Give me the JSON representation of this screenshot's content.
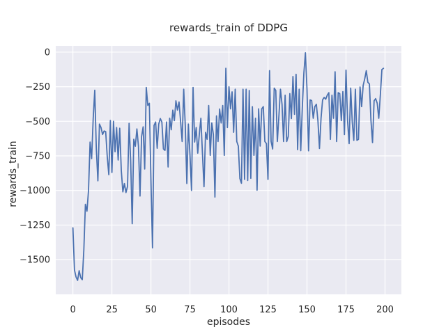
{
  "figure": {
    "kind": "matplotlib-seaborn-figure",
    "background": "#FFFFFF"
  },
  "chart_data": {
    "type": "line",
    "title": "rewards_train of DDPG",
    "xlabel": "episodes",
    "ylabel": "rewards_train",
    "legend": "none",
    "grid": true,
    "plot_bg": "#EAEAF2",
    "grid_color": "#FFFFFF",
    "text_color": "#262626",
    "line_color": "#4C72B0",
    "xlim": [
      -11,
      210.5
    ],
    "ylim": [
      -1751,
      45
    ],
    "xticks": [
      {
        "v": 0,
        "label": "0"
      },
      {
        "v": 25,
        "label": "25"
      },
      {
        "v": 50,
        "label": "50"
      },
      {
        "v": 75,
        "label": "75"
      },
      {
        "v": 100,
        "label": "100"
      },
      {
        "v": 125,
        "label": "125"
      },
      {
        "v": 150,
        "label": "150"
      },
      {
        "v": 175,
        "label": "175"
      },
      {
        "v": 200,
        "label": "200"
      }
    ],
    "yticks": [
      {
        "v": 0,
        "label": "0"
      },
      {
        "v": -250,
        "label": "−250"
      },
      {
        "v": -500,
        "label": "−500"
      },
      {
        "v": -750,
        "label": "−750"
      },
      {
        "v": -1000,
        "label": "−1000"
      },
      {
        "v": -1250,
        "label": "−1250"
      },
      {
        "v": -1500,
        "label": "−1500"
      }
    ],
    "series": [
      {
        "name": "rewards_train",
        "color": "#4C72B0",
        "x_start": 0,
        "x_step": 1,
        "values": [
          -1270,
          -1575,
          -1625,
          -1650,
          -1580,
          -1630,
          -1645,
          -1430,
          -1100,
          -1150,
          -1000,
          -650,
          -770,
          -480,
          -275,
          -700,
          -930,
          -520,
          -545,
          -595,
          -570,
          -575,
          -755,
          -886,
          -494,
          -870,
          -500,
          -720,
          -545,
          -780,
          -550,
          -855,
          -1010,
          -950,
          -1015,
          -970,
          -515,
          -780,
          -1240,
          -630,
          -680,
          -555,
          -680,
          -1040,
          -610,
          -540,
          -845,
          -255,
          -385,
          -370,
          -930,
          -1415,
          -530,
          -505,
          -695,
          -520,
          -480,
          -505,
          -700,
          -710,
          -505,
          -830,
          -478,
          -561,
          -419,
          -495,
          -352,
          -419,
          -360,
          -500,
          -646,
          -268,
          -530,
          -950,
          -520,
          -740,
          -1000,
          -255,
          -650,
          -545,
          -730,
          -595,
          -478,
          -730,
          -973,
          -580,
          -630,
          -386,
          -746,
          -512,
          -595,
          -1048,
          -461,
          -646,
          -411,
          -512,
          -386,
          -746,
          -117,
          -545,
          -250,
          -410,
          -287,
          -579,
          -268,
          -646,
          -679,
          -914,
          -948,
          -268,
          -920,
          -268,
          -928,
          -277,
          -912,
          -394,
          -746,
          -478,
          -998,
          -410,
          -679,
          -410,
          -394,
          -646,
          -661,
          -920,
          -134,
          -646,
          -700,
          -260,
          -277,
          -646,
          -462,
          -268,
          -377,
          -646,
          -311,
          -646,
          -610,
          -300,
          -480,
          -176,
          -450,
          -160,
          -705,
          -268,
          -712,
          -400,
          -150,
          -5,
          -268,
          -713,
          -345,
          -350,
          -478,
          -394,
          -377,
          -495,
          -696,
          -478,
          -345,
          -327,
          -340,
          -311,
          -293,
          -630,
          -311,
          -478,
          -142,
          -646,
          -293,
          -300,
          -495,
          -285,
          -596,
          -130,
          -494,
          -661,
          -260,
          -504,
          -638,
          -268,
          -638,
          -630,
          -252,
          -394,
          -240,
          -193,
          -134,
          -218,
          -230,
          -495,
          -654,
          -352,
          -336,
          -369,
          -478,
          -311,
          -126,
          -117
        ]
      }
    ]
  }
}
